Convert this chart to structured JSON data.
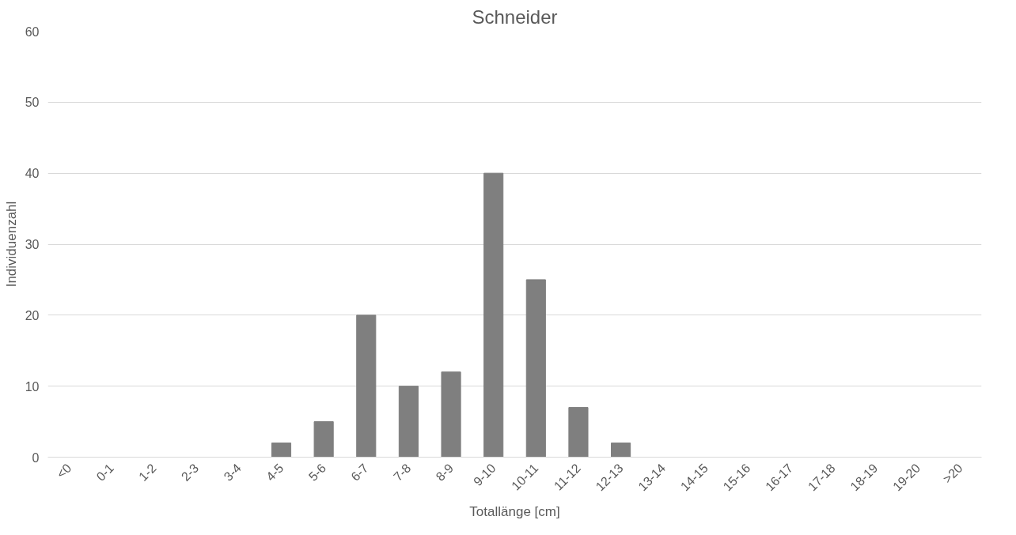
{
  "chart_data": {
    "type": "bar",
    "title": "Schneider",
    "xlabel": "Totallänge [cm]",
    "ylabel": "Individuenzahl",
    "categories": [
      "<0",
      "0-1",
      "1-2",
      "2-3",
      "3-4",
      "4-5",
      "5-6",
      "6-7",
      "7-8",
      "8-9",
      "9-10",
      "10-11",
      "11-12",
      "12-13",
      "13-14",
      "14-15",
      "15-16",
      "16-17",
      "17-18",
      "18-19",
      "19-20",
      ">20"
    ],
    "values": [
      0,
      0,
      0,
      0,
      0,
      2,
      5,
      20,
      10,
      12,
      40,
      25,
      7,
      2,
      0,
      0,
      0,
      0,
      0,
      0,
      0,
      0
    ],
    "color": "#7f7f7f",
    "ylim": [
      0,
      60
    ],
    "yticks": [
      0,
      10,
      20,
      30,
      40,
      50,
      60
    ],
    "grid": "y",
    "legend": false
  }
}
